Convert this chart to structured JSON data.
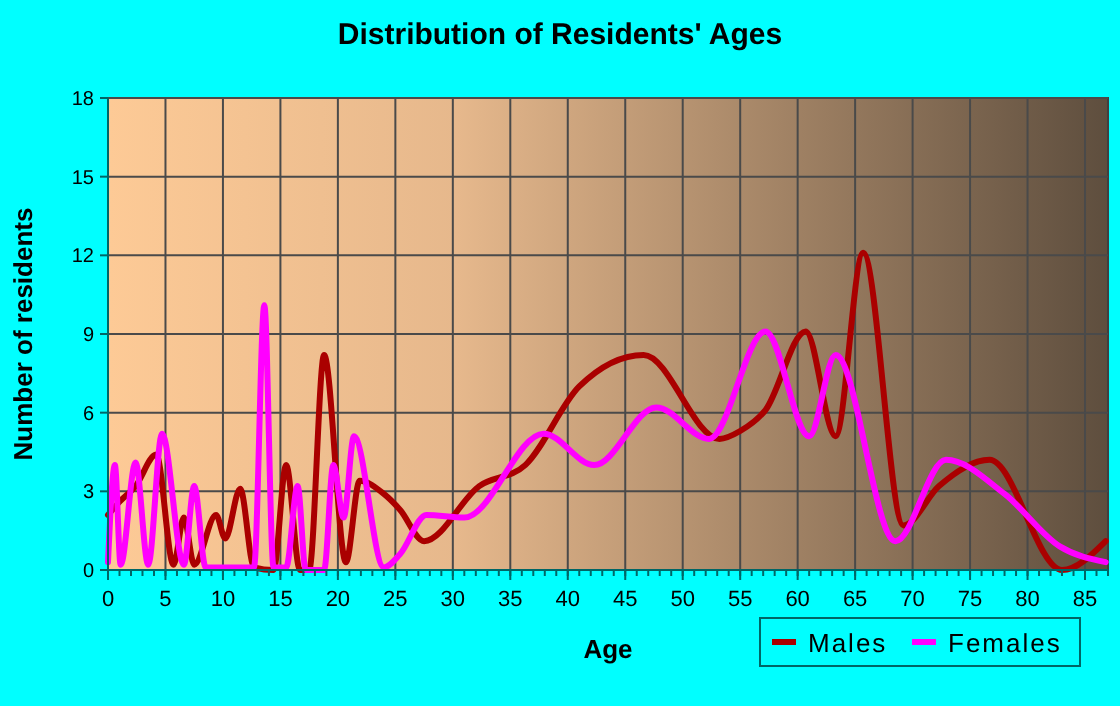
{
  "chart_data": {
    "type": "line",
    "title": "Distribution of Residents' Ages",
    "xlabel": "Age",
    "ylabel": "Number of residents",
    "xlim": [
      0,
      87
    ],
    "xticks": [
      0,
      5,
      10,
      15,
      20,
      25,
      30,
      35,
      40,
      45,
      50,
      55,
      60,
      65,
      70,
      75,
      80,
      85
    ],
    "ylim": [
      0,
      18
    ],
    "yticks": [
      0,
      3,
      6,
      9,
      12,
      15,
      18
    ],
    "grid": true,
    "legend": "bottom right",
    "series": [
      {
        "name": "Males",
        "color": "#aa0000",
        "x": [
          0,
          1,
          2.4,
          4.2,
          5.7,
          6.6,
          7.5,
          9.4,
          10.2,
          11.5,
          12.7,
          14.4,
          15.5,
          16.7,
          17.5,
          18.8,
          20.7,
          21.9,
          24,
          25.4,
          27.5,
          32.3,
          36.3,
          41,
          46.6,
          53.2,
          55,
          57.2,
          60.7,
          63.3,
          65.7,
          69.2,
          72.3,
          76.7,
          83,
          86.8
        ],
        "values": [
          2.1,
          2.6,
          3.2,
          4.4,
          0.2,
          2,
          0.2,
          2.1,
          1.2,
          3.1,
          0.1,
          0,
          4,
          0,
          0,
          8.2,
          0.3,
          3.4,
          2.9,
          2.3,
          1.1,
          3.2,
          4,
          7,
          8.2,
          5,
          5.3,
          6.1,
          9.1,
          5.1,
          12.1,
          1.7,
          3.2,
          4.2,
          0,
          1.1
        ]
      },
      {
        "name": "Females",
        "color": "#ff00ff",
        "x": [
          0,
          0.6,
          1.1,
          2.4,
          3.5,
          4.7,
          6.6,
          7.5,
          8.5,
          11.5,
          12.7,
          13.6,
          14.4,
          15.5,
          16.5,
          17.2,
          18.8,
          19.6,
          20.5,
          21.4,
          24,
          25.4,
          27.7,
          31,
          37.9,
          42.3,
          47.7,
          52.3,
          57.2,
          61,
          63.3,
          68.5,
          72.9,
          78,
          82.8,
          86.8
        ],
        "values": [
          0.3,
          4,
          0.2,
          4.1,
          0.2,
          5.2,
          0.2,
          3.2,
          0.1,
          0.1,
          0.1,
          10.1,
          0.1,
          0.1,
          3.2,
          0,
          0,
          4,
          2,
          5.1,
          0.1,
          0.6,
          2.1,
          2,
          5.2,
          4,
          6.2,
          5,
          9.1,
          5.1,
          8.2,
          1.1,
          4.2,
          2.9,
          0.9,
          0.3
        ]
      }
    ]
  }
}
